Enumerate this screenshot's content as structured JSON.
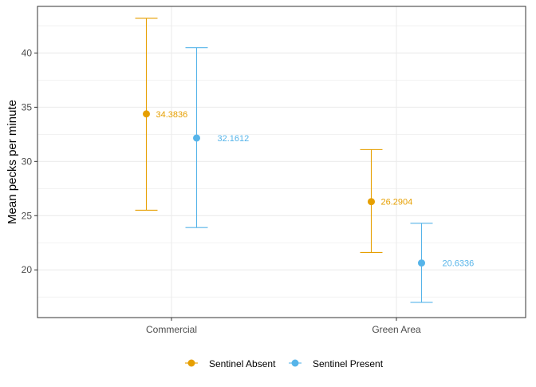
{
  "chart_data": {
    "type": "scatter",
    "subtype": "point-with-errorbars",
    "title": "",
    "xlabel": "",
    "ylabel": "Mean pecks per minute",
    "categories": [
      "Commercial",
      "Green Area"
    ],
    "ylim": [
      15.6,
      44.3
    ],
    "yticks": [
      20,
      25,
      30,
      35,
      40
    ],
    "ytick_labels": [
      "20",
      "25",
      "30",
      "35",
      "40"
    ],
    "grid": true,
    "legend_position": "bottom",
    "series": [
      {
        "name": "Sentinel Absent",
        "color": "#E69F00",
        "values": [
          34.3836,
          26.2904
        ],
        "value_labels": [
          "34.3836",
          "26.2904"
        ],
        "lower": [
          25.5,
          21.6
        ],
        "upper": [
          43.2,
          31.1
        ]
      },
      {
        "name": "Sentinel Present",
        "color": "#56B4E9",
        "values": [
          32.1612,
          20.6336
        ],
        "value_labels": [
          "32.1612",
          "20.6336"
        ],
        "lower": [
          23.9,
          17.0
        ],
        "upper": [
          40.5,
          24.3
        ]
      }
    ]
  }
}
